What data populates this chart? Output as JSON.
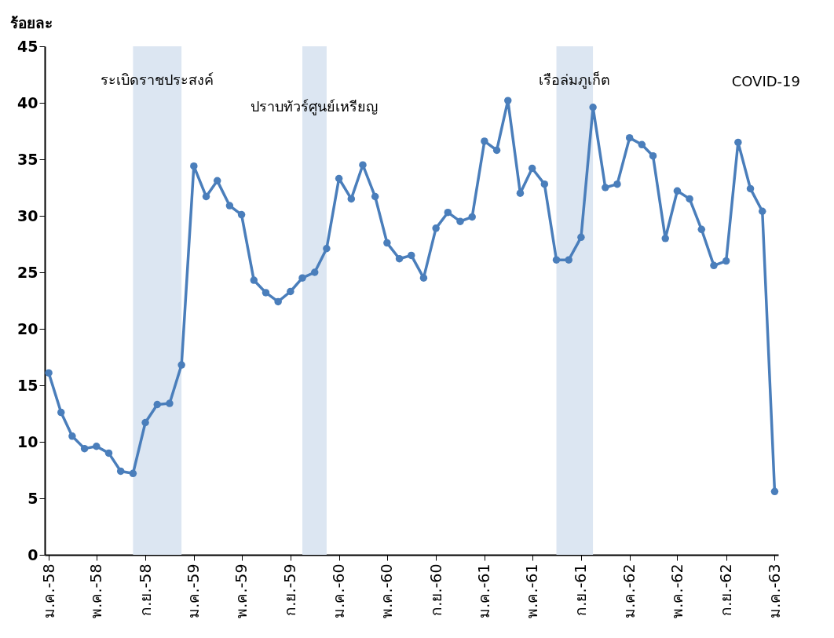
{
  "chart_data": {
    "type": "line",
    "ylabel": "ร้อยละ",
    "x": [
      "2558-01",
      "2558-02",
      "2558-03",
      "2558-04",
      "2558-05",
      "2558-06",
      "2558-07",
      "2558-08",
      "2558-09",
      "2558-10",
      "2558-11",
      "2558-12",
      "2559-01",
      "2559-02",
      "2559-03",
      "2559-04",
      "2559-05",
      "2559-06",
      "2559-07",
      "2559-08",
      "2559-09",
      "2559-10",
      "2559-11",
      "2559-12",
      "2560-01",
      "2560-02",
      "2560-03",
      "2560-04",
      "2560-05",
      "2560-06",
      "2560-07",
      "2560-08",
      "2560-09",
      "2560-10",
      "2560-11",
      "2560-12",
      "2561-01",
      "2561-02",
      "2561-03",
      "2561-04",
      "2561-05",
      "2561-06",
      "2561-07",
      "2561-08",
      "2561-09",
      "2561-10",
      "2561-11",
      "2561-12",
      "2562-01",
      "2562-02",
      "2562-03",
      "2562-04",
      "2562-05",
      "2562-06",
      "2562-07",
      "2562-08",
      "2562-09",
      "2562-10",
      "2562-11",
      "2562-12",
      "2563-01"
    ],
    "series": [
      {
        "color": "#4a7ebb",
        "values": [
          16.1,
          12.6,
          10.5,
          9.4,
          9.6,
          9.0,
          7.4,
          7.2,
          11.7,
          13.3,
          13.4,
          16.8,
          34.4,
          31.7,
          33.1,
          30.9,
          30.1,
          24.3,
          23.2,
          22.4,
          23.3,
          24.5,
          25.0,
          27.1,
          33.3,
          31.5,
          34.5,
          31.7,
          27.6,
          26.2,
          26.5,
          24.5,
          28.9,
          30.3,
          29.5,
          29.9,
          36.6,
          35.8,
          40.2,
          32.0,
          34.2,
          32.8,
          26.1,
          26.1,
          28.1,
          39.6,
          32.5,
          32.8,
          36.9,
          36.3,
          35.3,
          28.0,
          32.2,
          31.5,
          28.8,
          25.6,
          26.0,
          36.5,
          32.4,
          30.4,
          5.6
        ]
      }
    ],
    "xlim": [
      "2557-12-22",
      "2563-01-10"
    ],
    "xticks": [
      {
        "value": "2558-01",
        "label": "ม.ค.-58"
      },
      {
        "value": "2558-05",
        "label": "พ.ค.-58"
      },
      {
        "value": "2558-09",
        "label": "ก.ย.-58"
      },
      {
        "value": "2559-01",
        "label": "ม.ค.-59"
      },
      {
        "value": "2559-05",
        "label": "พ.ค.-59"
      },
      {
        "value": "2559-09",
        "label": "ก.ย.-59"
      },
      {
        "value": "2560-01",
        "label": "ม.ค.-60"
      },
      {
        "value": "2560-05",
        "label": "พ.ค.-60"
      },
      {
        "value": "2560-09",
        "label": "ก.ย.-60"
      },
      {
        "value": "2561-01",
        "label": "ม.ค.-61"
      },
      {
        "value": "2561-05",
        "label": "พ.ค.-61"
      },
      {
        "value": "2561-09",
        "label": "ก.ย.-61"
      },
      {
        "value": "2562-01",
        "label": "ม.ค.-62"
      },
      {
        "value": "2562-05",
        "label": "พ.ค.-62"
      },
      {
        "value": "2562-09",
        "label": "ก.ย.-62"
      },
      {
        "value": "2563-01",
        "label": "ม.ค.-63"
      }
    ],
    "ylim": [
      0,
      45
    ],
    "yticks": [
      0,
      5,
      10,
      15,
      20,
      25,
      30,
      35,
      40,
      45
    ],
    "bands": [
      {
        "axis": "x",
        "from": "2558-08",
        "to": "2558-12",
        "color": "#dce6f2",
        "label": "ระเบิดราชประสงค์"
      },
      {
        "axis": "x",
        "from": "2559-10",
        "to": "2559-12",
        "color": "#dce6f2",
        "label": "ปราบทัวร์ศูนย์เหรียญ"
      },
      {
        "axis": "x",
        "from": "2561-07",
        "to": "2561-10",
        "color": "#dce6f2",
        "label": "เรือล่มภูเก็ต"
      }
    ],
    "annotations": [
      "COVID-19"
    ],
    "marker": "circle",
    "line_style": "solid",
    "grid": false
  }
}
